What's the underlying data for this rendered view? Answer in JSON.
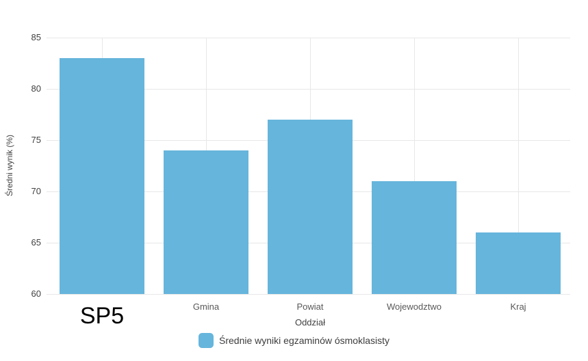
{
  "chart_data": {
    "type": "bar",
    "title": "",
    "categories": [
      "SP5",
      "Gmina",
      "Powiat",
      "Wojewodztwo",
      "Kraj"
    ],
    "values": [
      83,
      74,
      77,
      71,
      66
    ],
    "series": [
      {
        "name": "Średnie wyniki egzaminów ósmoklasisty",
        "values": [
          83,
          74,
          77,
          71,
          66
        ]
      }
    ],
    "xlabel": "Oddział",
    "ylabel": "Średni wynik (%)",
    "ylim": [
      60,
      85
    ],
    "yticks": [
      60,
      65,
      70,
      75,
      80,
      85
    ],
    "grid": true,
    "legend_position": "bottom",
    "legend": [
      "Średnie wyniki egzaminów ósmoklasisty"
    ],
    "highlight_category": "SP5",
    "bar_color": "#66b5dc",
    "gridline_color": "#e7e7e7"
  }
}
